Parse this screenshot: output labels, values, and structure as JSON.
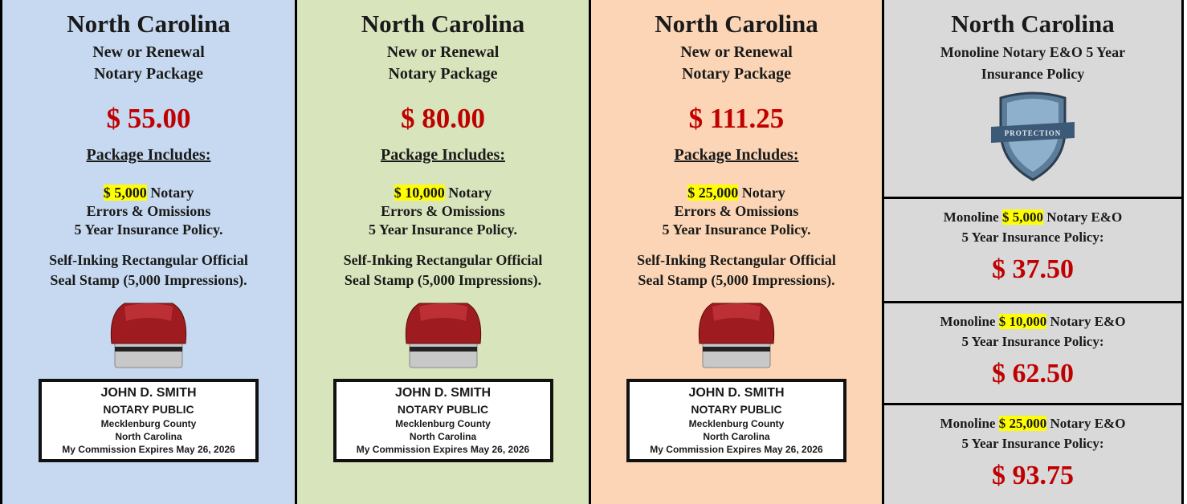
{
  "packages": [
    {
      "state": "North Carolina",
      "title": [
        "New or Renewal",
        "Notary Package"
      ],
      "price": "$ 55.00",
      "includes_heading": "Package Includes:",
      "coverage_amount": "$ 5,000",
      "coverage_text": [
        "Notary",
        "Errors & Omissions",
        "5 Year Insurance Policy."
      ],
      "stamp_text": [
        "Self-Inking Rectangular Official",
        "Seal Stamp (5,000 Impressions)."
      ],
      "seal": [
        "JOHN D. SMITH",
        "NOTARY PUBLIC",
        "Mecklenburg County",
        "North Carolina",
        "My Commission Expires May 26, 2026"
      ]
    },
    {
      "state": "North Carolina",
      "title": [
        "New or Renewal",
        "Notary Package"
      ],
      "price": "$ 80.00",
      "includes_heading": "Package Includes:",
      "coverage_amount": "$ 10,000",
      "coverage_text": [
        "Notary",
        "Errors & Omissions",
        "5 Year Insurance Policy."
      ],
      "stamp_text": [
        "Self-Inking Rectangular Official",
        "Seal Stamp (5,000 Impressions)."
      ],
      "seal": [
        "JOHN D. SMITH",
        "NOTARY PUBLIC",
        "Mecklenburg County",
        "North Carolina",
        "My Commission Expires May 26, 2026"
      ]
    },
    {
      "state": "North Carolina",
      "title": [
        "New or Renewal",
        "Notary Package"
      ],
      "price": "$ 111.25",
      "includes_heading": "Package Includes:",
      "coverage_amount": "$ 25,000",
      "coverage_text": [
        "Notary",
        "Errors & Omissions",
        "5 Year Insurance Policy."
      ],
      "stamp_text": [
        "Self-Inking Rectangular Official",
        "Seal Stamp (5,000 Impressions)."
      ],
      "seal": [
        "JOHN D. SMITH",
        "NOTARY PUBLIC",
        "Mecklenburg County",
        "North Carolina",
        "My Commission Expires May 26, 2026"
      ]
    }
  ],
  "monoline": {
    "state": "North Carolina",
    "title": [
      "Monoline Notary E&O 5 Year",
      "Insurance Policy"
    ],
    "shield_text": "PROTECTION",
    "options": [
      {
        "prefix": "Monoline",
        "amount": "$ 5,000",
        "suffix": "Notary E&O",
        "line2": "5 Year Insurance Policy:",
        "price": "$ 37.50"
      },
      {
        "prefix": "Monoline",
        "amount": "$ 10,000",
        "suffix": "Notary E&O",
        "line2": "5 Year Insurance Policy:",
        "price": "$ 62.50"
      },
      {
        "prefix": "Monoline",
        "amount": "$ 25,000",
        "suffix": "Notary E&O",
        "line2": "5 Year Insurance Policy:",
        "price": "$ 93.75"
      }
    ]
  }
}
